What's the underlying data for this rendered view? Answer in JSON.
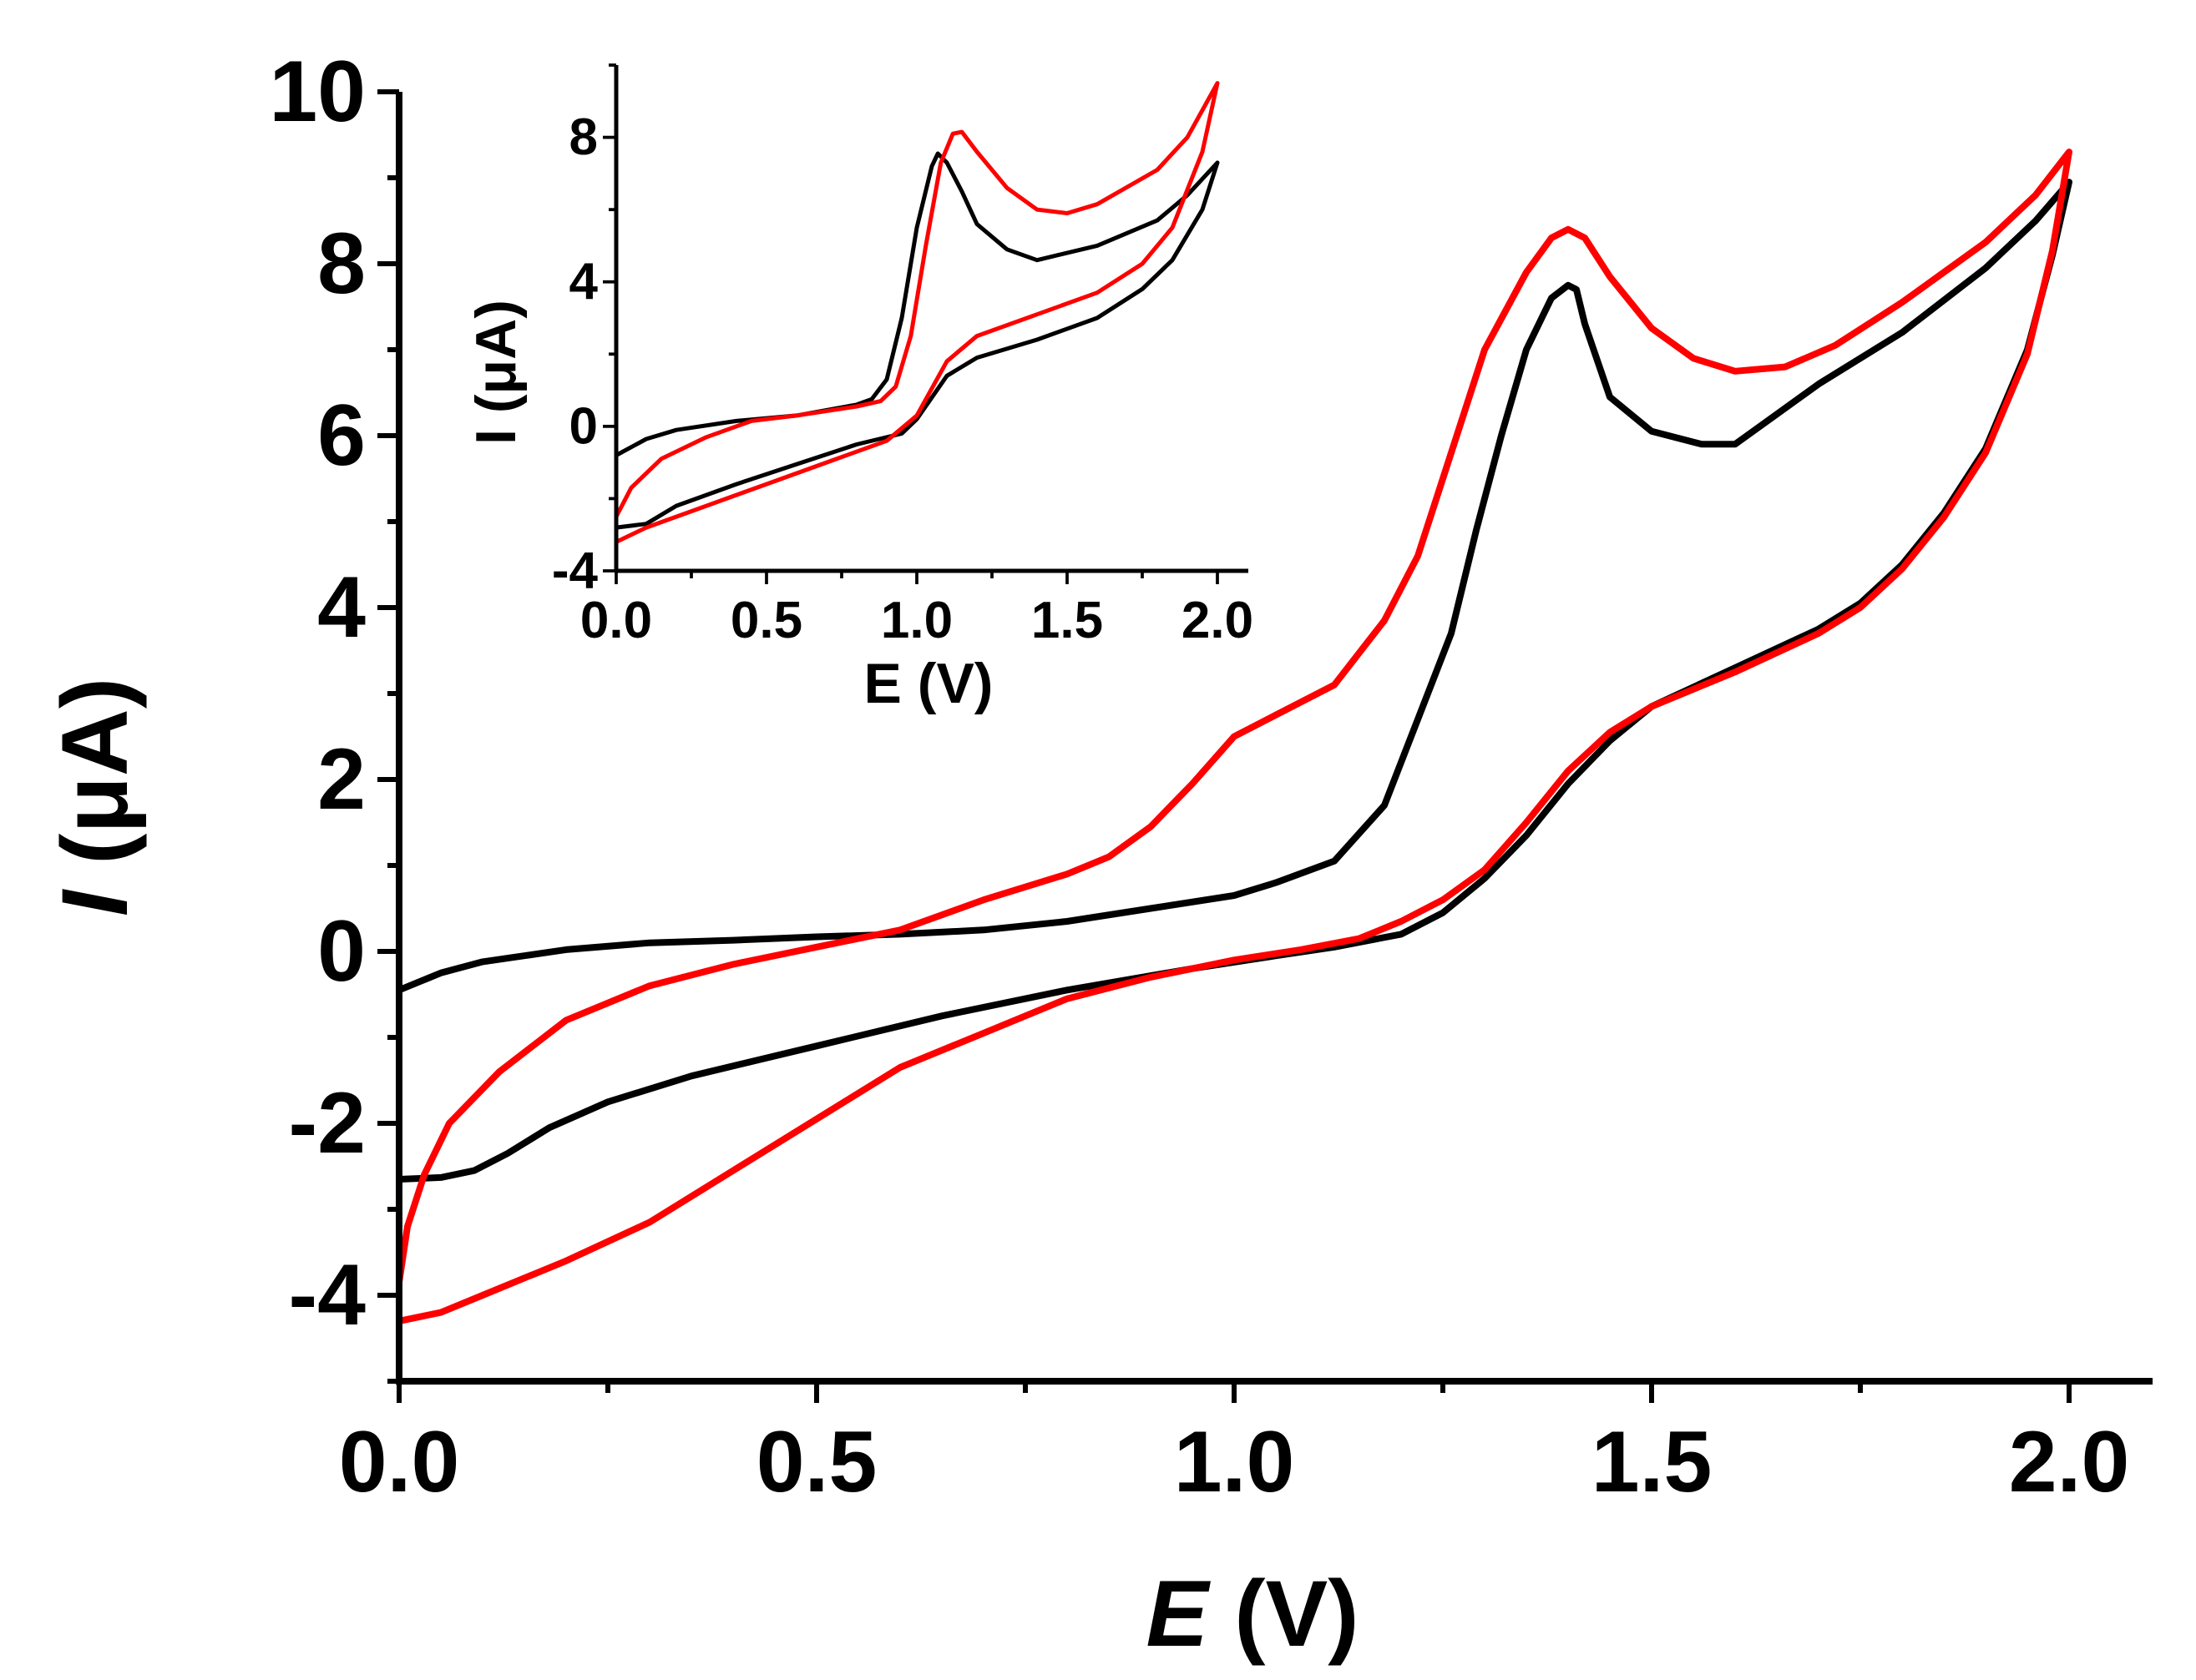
{
  "chart_data": [
    {
      "id": "main",
      "type": "line",
      "title": "",
      "xlabel": {
        "var": "E",
        "unit": " (V)"
      },
      "ylabel": {
        "var": "I",
        "unit": " (μA)"
      },
      "xlim": [
        0.0,
        2.1
      ],
      "ylim": [
        -5,
        10
      ],
      "xticks": [
        "0.0",
        "0.5",
        "1.0",
        "1.5",
        "2.0"
      ],
      "yticks": [
        "-4",
        "-2",
        "0",
        "2",
        "4",
        "6",
        "8",
        "10"
      ],
      "legend": "none",
      "grid": false,
      "series": [
        {
          "name": "black",
          "color": "#000000",
          "points": [
            [
              2.0,
              8.95
            ],
            [
              1.96,
              8.5
            ],
            [
              1.9,
              7.95
            ],
            [
              1.8,
              7.2
            ],
            [
              1.7,
              6.6
            ],
            [
              1.6,
              5.9
            ],
            [
              1.56,
              5.9
            ],
            [
              1.5,
              6.05
            ],
            [
              1.45,
              6.45
            ],
            [
              1.42,
              7.3
            ],
            [
              1.41,
              7.7
            ],
            [
              1.4,
              7.75
            ],
            [
              1.38,
              7.6
            ],
            [
              1.35,
              7.0
            ],
            [
              1.32,
              6.0
            ],
            [
              1.29,
              4.9
            ],
            [
              1.26,
              3.7
            ],
            [
              1.22,
              2.7
            ],
            [
              1.18,
              1.7
            ],
            [
              1.12,
              1.05
            ],
            [
              1.05,
              0.8
            ],
            [
              1.0,
              0.65
            ],
            [
              0.9,
              0.5
            ],
            [
              0.8,
              0.35
            ],
            [
              0.7,
              0.25
            ],
            [
              0.6,
              0.2
            ],
            [
              0.5,
              0.17
            ],
            [
              0.4,
              0.13
            ],
            [
              0.3,
              0.1
            ],
            [
              0.2,
              0.02
            ],
            [
              0.15,
              -0.05
            ],
            [
              0.1,
              -0.12
            ],
            [
              0.05,
              -0.25
            ],
            [
              0.0,
              -0.45
            ],
            [
              0.0,
              -2.65
            ],
            [
              0.05,
              -2.63
            ],
            [
              0.09,
              -2.55
            ],
            [
              0.13,
              -2.35
            ],
            [
              0.18,
              -2.05
            ],
            [
              0.25,
              -1.75
            ],
            [
              0.35,
              -1.45
            ],
            [
              0.5,
              -1.1
            ],
            [
              0.65,
              -0.75
            ],
            [
              0.8,
              -0.45
            ],
            [
              0.95,
              -0.2
            ],
            [
              1.05,
              -0.05
            ],
            [
              1.12,
              0.05
            ],
            [
              1.2,
              0.2
            ],
            [
              1.25,
              0.45
            ],
            [
              1.3,
              0.85
            ],
            [
              1.35,
              1.35
            ],
            [
              1.4,
              1.95
            ],
            [
              1.45,
              2.45
            ],
            [
              1.5,
              2.85
            ],
            [
              1.6,
              3.3
            ],
            [
              1.7,
              3.75
            ],
            [
              1.75,
              4.05
            ],
            [
              1.8,
              4.5
            ],
            [
              1.85,
              5.1
            ],
            [
              1.9,
              5.85
            ],
            [
              1.95,
              7.0
            ],
            [
              1.98,
              8.1
            ],
            [
              2.0,
              8.95
            ]
          ]
        },
        {
          "name": "red",
          "color": "#ff0000",
          "points": [
            [
              2.0,
              9.3
            ],
            [
              1.96,
              8.8
            ],
            [
              1.9,
              8.25
            ],
            [
              1.8,
              7.55
            ],
            [
              1.72,
              7.05
            ],
            [
              1.66,
              6.8
            ],
            [
              1.6,
              6.75
            ],
            [
              1.55,
              6.9
            ],
            [
              1.5,
              7.25
            ],
            [
              1.45,
              7.85
            ],
            [
              1.42,
              8.3
            ],
            [
              1.4,
              8.4
            ],
            [
              1.38,
              8.3
            ],
            [
              1.35,
              7.9
            ],
            [
              1.3,
              7.0
            ],
            [
              1.25,
              5.5
            ],
            [
              1.22,
              4.6
            ],
            [
              1.18,
              3.85
            ],
            [
              1.12,
              3.1
            ],
            [
              1.05,
              2.75
            ],
            [
              1.0,
              2.5
            ],
            [
              0.95,
              1.95
            ],
            [
              0.9,
              1.45
            ],
            [
              0.85,
              1.1
            ],
            [
              0.8,
              0.9
            ],
            [
              0.7,
              0.6
            ],
            [
              0.6,
              0.25
            ],
            [
              0.5,
              0.05
            ],
            [
              0.4,
              -0.15
            ],
            [
              0.3,
              -0.4
            ],
            [
              0.2,
              -0.8
            ],
            [
              0.12,
              -1.4
            ],
            [
              0.06,
              -2.0
            ],
            [
              0.03,
              -2.6
            ],
            [
              0.01,
              -3.2
            ],
            [
              0.0,
              -3.85
            ],
            [
              0.0,
              -4.3
            ],
            [
              0.05,
              -4.2
            ],
            [
              0.1,
              -4.0
            ],
            [
              0.2,
              -3.6
            ],
            [
              0.3,
              -3.15
            ],
            [
              0.4,
              -2.55
            ],
            [
              0.5,
              -1.95
            ],
            [
              0.6,
              -1.35
            ],
            [
              0.7,
              -0.95
            ],
            [
              0.8,
              -0.55
            ],
            [
              0.9,
              -0.3
            ],
            [
              1.0,
              -0.1
            ],
            [
              1.08,
              0.02
            ],
            [
              1.15,
              0.15
            ],
            [
              1.2,
              0.35
            ],
            [
              1.25,
              0.6
            ],
            [
              1.3,
              0.95
            ],
            [
              1.35,
              1.5
            ],
            [
              1.4,
              2.1
            ],
            [
              1.45,
              2.55
            ],
            [
              1.5,
              2.85
            ],
            [
              1.6,
              3.25
            ],
            [
              1.7,
              3.7
            ],
            [
              1.75,
              4.0
            ],
            [
              1.8,
              4.45
            ],
            [
              1.85,
              5.05
            ],
            [
              1.9,
              5.8
            ],
            [
              1.95,
              6.95
            ],
            [
              1.98,
              8.15
            ],
            [
              2.0,
              9.3
            ]
          ]
        }
      ]
    },
    {
      "id": "inset",
      "type": "line",
      "title": "",
      "xlabel": "E (V)",
      "ylabel": "I (μA)",
      "xlim": [
        0.0,
        2.1
      ],
      "ylim": [
        -4,
        10
      ],
      "xticks": [
        "0.0",
        "0.5",
        "1.0",
        "1.5",
        "2.0"
      ],
      "yticks": [
        "-4",
        "0",
        "4",
        "8"
      ],
      "legend": "none",
      "grid": false,
      "series": [
        {
          "name": "black",
          "color": "#000000",
          "points": [
            [
              2.0,
              7.3
            ],
            [
              1.9,
              6.4
            ],
            [
              1.8,
              5.7
            ],
            [
              1.6,
              5.0
            ],
            [
              1.4,
              4.6
            ],
            [
              1.3,
              4.9
            ],
            [
              1.2,
              5.6
            ],
            [
              1.15,
              6.5
            ],
            [
              1.1,
              7.3
            ],
            [
              1.07,
              7.55
            ],
            [
              1.05,
              7.2
            ],
            [
              1.0,
              5.5
            ],
            [
              0.95,
              3.0
            ],
            [
              0.9,
              1.3
            ],
            [
              0.85,
              0.75
            ],
            [
              0.8,
              0.6
            ],
            [
              0.6,
              0.3
            ],
            [
              0.4,
              0.15
            ],
            [
              0.2,
              -0.1
            ],
            [
              0.1,
              -0.35
            ],
            [
              0.0,
              -0.8
            ],
            [
              0.0,
              -2.8
            ],
            [
              0.1,
              -2.7
            ],
            [
              0.2,
              -2.2
            ],
            [
              0.4,
              -1.6
            ],
            [
              0.6,
              -1.05
            ],
            [
              0.8,
              -0.5
            ],
            [
              0.95,
              -0.2
            ],
            [
              1.0,
              0.2
            ],
            [
              1.1,
              1.4
            ],
            [
              1.2,
              1.9
            ],
            [
              1.4,
              2.4
            ],
            [
              1.6,
              3.0
            ],
            [
              1.75,
              3.8
            ],
            [
              1.85,
              4.6
            ],
            [
              1.95,
              6.0
            ],
            [
              2.0,
              7.3
            ]
          ]
        },
        {
          "name": "red",
          "color": "#ff0000",
          "points": [
            [
              2.0,
              9.5
            ],
            [
              1.9,
              8.0
            ],
            [
              1.8,
              7.1
            ],
            [
              1.6,
              6.15
            ],
            [
              1.5,
              5.9
            ],
            [
              1.4,
              6.0
            ],
            [
              1.3,
              6.6
            ],
            [
              1.2,
              7.6
            ],
            [
              1.15,
              8.15
            ],
            [
              1.12,
              8.1
            ],
            [
              1.08,
              7.3
            ],
            [
              1.03,
              5.0
            ],
            [
              0.98,
              2.5
            ],
            [
              0.93,
              1.1
            ],
            [
              0.88,
              0.7
            ],
            [
              0.8,
              0.55
            ],
            [
              0.6,
              0.3
            ],
            [
              0.45,
              0.15
            ],
            [
              0.3,
              -0.3
            ],
            [
              0.15,
              -0.9
            ],
            [
              0.05,
              -1.7
            ],
            [
              0.0,
              -2.5
            ],
            [
              0.0,
              -3.2
            ],
            [
              0.1,
              -2.8
            ],
            [
              0.3,
              -2.2
            ],
            [
              0.5,
              -1.6
            ],
            [
              0.7,
              -1.0
            ],
            [
              0.9,
              -0.4
            ],
            [
              1.0,
              0.3
            ],
            [
              1.1,
              1.8
            ],
            [
              1.2,
              2.5
            ],
            [
              1.4,
              3.1
            ],
            [
              1.6,
              3.7
            ],
            [
              1.75,
              4.5
            ],
            [
              1.85,
              5.5
            ],
            [
              1.95,
              7.6
            ],
            [
              2.0,
              9.5
            ]
          ]
        }
      ]
    }
  ]
}
